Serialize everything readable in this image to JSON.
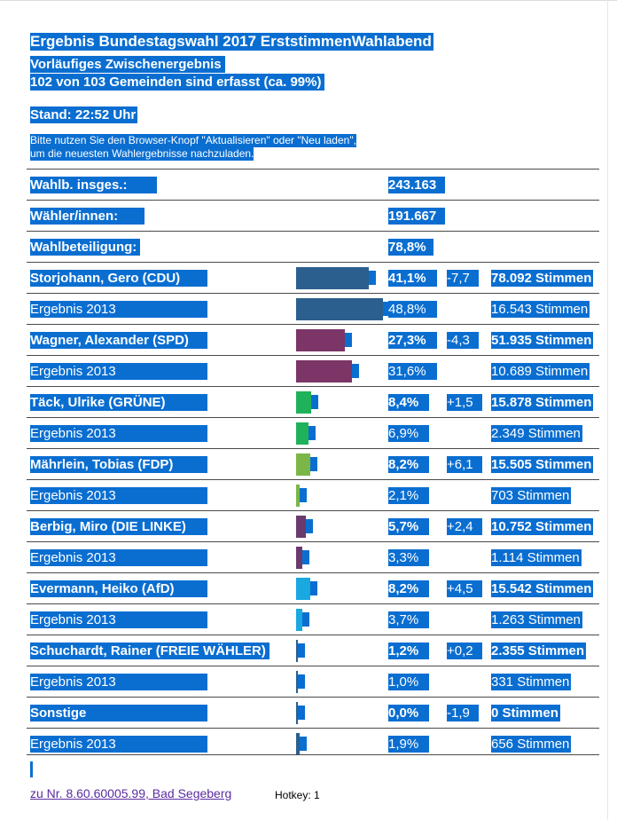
{
  "header": {
    "title": "Ergebnis Bundestagswahl 2017 ErststimmenWahlabend",
    "subtitle_line1": "Vorläufiges Zwischenergebnis",
    "subtitle_line2": "102 von 103 Gemeinden sind erfasst (ca. 99%)",
    "stand": "Stand: 22:52 Uhr",
    "hint_line1": "Bitte nutzen Sie den Browser-Knopf \"Aktualisieren\" oder \"Neu laden\",",
    "hint_line2": "um die neuesten Wahlergebnisse nachzuladen."
  },
  "summary": [
    {
      "label": "Wahlb. insges.:",
      "value": "243.163"
    },
    {
      "label": "Wähler/innen:",
      "value": "191.667"
    },
    {
      "label": "Wahlbeteiligung:",
      "value": "78,8%"
    }
  ],
  "results": [
    {
      "kind": "candidate",
      "name": "Storjohann, Gero (CDU)",
      "pct": "41,1%",
      "diff": "-7,7",
      "votes": "78.092 Stimmen",
      "share": 41.1,
      "color": "#2b5f8e"
    },
    {
      "kind": "previous",
      "name": "Ergebnis 2013",
      "pct": "48,8%",
      "diff": "",
      "votes": "16.543 Stimmen",
      "share": 48.8,
      "color": "#2b5f8e"
    },
    {
      "kind": "candidate",
      "name": "Wagner, Alexander (SPD)",
      "pct": "27,3%",
      "diff": "-4,3",
      "votes": "51.935 Stimmen",
      "share": 27.3,
      "color": "#7b3566"
    },
    {
      "kind": "previous",
      "name": "Ergebnis 2013",
      "pct": "31,6%",
      "diff": "",
      "votes": "10.689 Stimmen",
      "share": 31.6,
      "color": "#7b3566"
    },
    {
      "kind": "candidate",
      "name": "Täck, Ulrike (GRÜNE)",
      "pct": "8,4%",
      "diff": "+1,5",
      "votes": "15.878 Stimmen",
      "share": 8.4,
      "color": "#1fb25a"
    },
    {
      "kind": "previous",
      "name": "Ergebnis 2013",
      "pct": "6,9%",
      "diff": "",
      "votes": "2.349 Stimmen",
      "share": 6.9,
      "color": "#1fb25a"
    },
    {
      "kind": "candidate",
      "name": "Mährlein, Tobias (FDP)",
      "pct": "8,2%",
      "diff": "+6,1",
      "votes": "15.505 Stimmen",
      "share": 8.2,
      "color": "#7ab648"
    },
    {
      "kind": "previous",
      "name": "Ergebnis 2013",
      "pct": "2,1%",
      "diff": "",
      "votes": "703 Stimmen",
      "share": 2.1,
      "color": "#7ab648"
    },
    {
      "kind": "candidate",
      "name": "Berbig, Miro (DIE LINKE)",
      "pct": "5,7%",
      "diff": "+2,4",
      "votes": "10.752 Stimmen",
      "share": 5.7,
      "color": "#6a3a6e"
    },
    {
      "kind": "previous",
      "name": "Ergebnis 2013",
      "pct": "3,3%",
      "diff": "",
      "votes": "1.114 Stimmen",
      "share": 3.3,
      "color": "#6a3a6e"
    },
    {
      "kind": "candidate",
      "name": "Evermann, Heiko (AfD)",
      "pct": "8,2%",
      "diff": "+4,5",
      "votes": "15.542 Stimmen",
      "share": 8.2,
      "color": "#19a8e0"
    },
    {
      "kind": "previous",
      "name": "Ergebnis 2013",
      "pct": "3,7%",
      "diff": "",
      "votes": "1.263 Stimmen",
      "share": 3.7,
      "color": "#19a8e0"
    },
    {
      "kind": "candidate",
      "name": "Schuchardt, Rainer (FREIE WÄHLER)",
      "pct": "1,2%",
      "diff": "+0,2",
      "votes": "2.355 Stimmen",
      "share": 1.2,
      "color": "#2b5f8e"
    },
    {
      "kind": "previous",
      "name": "Ergebnis 2013",
      "pct": "1,0%",
      "diff": "",
      "votes": "331 Stimmen",
      "share": 1.0,
      "color": "#2b5f8e"
    },
    {
      "kind": "candidate",
      "name": "Sonstige",
      "pct": "0,0%",
      "diff": "-1,9",
      "votes": "0 Stimmen",
      "share": 0.0,
      "color": "#2b5f8e"
    },
    {
      "kind": "previous",
      "name": "Ergebnis 2013",
      "pct": "1,9%",
      "diff": "",
      "votes": "656 Stimmen",
      "share": 1.9,
      "color": "#2b5f8e"
    }
  ],
  "footer": {
    "link_text": "zu Nr. 8.60.60005.99, Bad Segeberg",
    "hotkey_text": "Hotkey: 1"
  },
  "colors": {
    "highlight": "#0a6ed1",
    "link": "#5a2ca0"
  }
}
